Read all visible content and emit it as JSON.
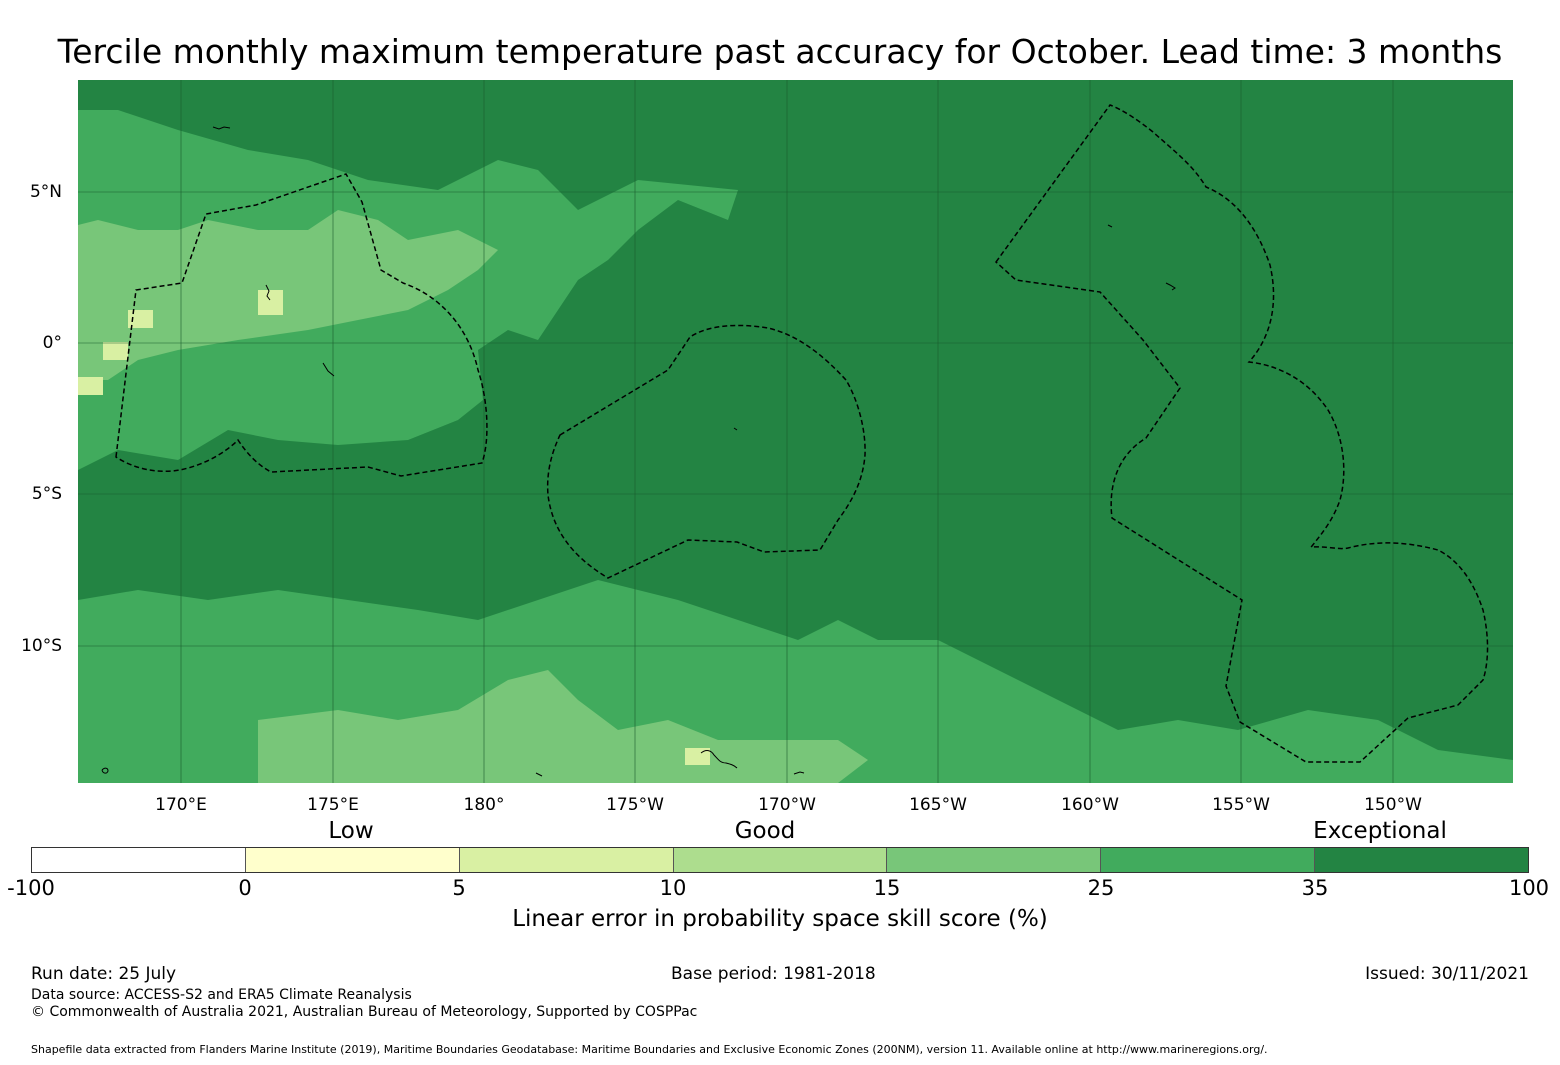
{
  "title": "Tercile monthly maximum temperature past accuracy for October. Lead time: 3 months",
  "map": {
    "lon_labels": [
      "170°E",
      "175°E",
      "180°",
      "175°W",
      "170°W",
      "165°W",
      "160°W",
      "155°W",
      "150°W"
    ],
    "lat_labels": [
      "5°N",
      "0°",
      "5°S",
      "10°S"
    ],
    "colors": {
      "exceptional": "#238443",
      "very_good": "#41ab5d",
      "good": "#78c679",
      "fair": "#addd8e",
      "low": "#d9f0a3",
      "poor": "#ffffcc",
      "none": "#ffffff"
    }
  },
  "legend": {
    "categories": [
      "Low",
      "Good",
      "Exceptional"
    ],
    "ticks": [
      "-100",
      "0",
      "5",
      "10",
      "15",
      "25",
      "35",
      "100"
    ],
    "colors": [
      "#ffffff",
      "#ffffcc",
      "#d9f0a3",
      "#addd8e",
      "#78c679",
      "#41ab5d",
      "#238443"
    ],
    "title": "Linear error in probability space skill score (%)"
  },
  "footer": {
    "run_date": "Run date: 25 July",
    "base_period": "Base period: 1981-2018",
    "issued": "Issued: 30/11/2021",
    "data_source": "Data source: ACCESS-S2 and ERA5 Climate Reanalysis",
    "copyright": "© Commonwealth of Australia 2021, Australian Bureau of Meteorology, Supported by COSPPac",
    "shapefile": "Shapefile data extracted from Flanders Marine Institute (2019), Maritime Boundaries Geodatabase: Maritime Boundaries and Exclusive Economic Zones (200NM), version 11. Available online at http://www.marineregions.org/."
  }
}
